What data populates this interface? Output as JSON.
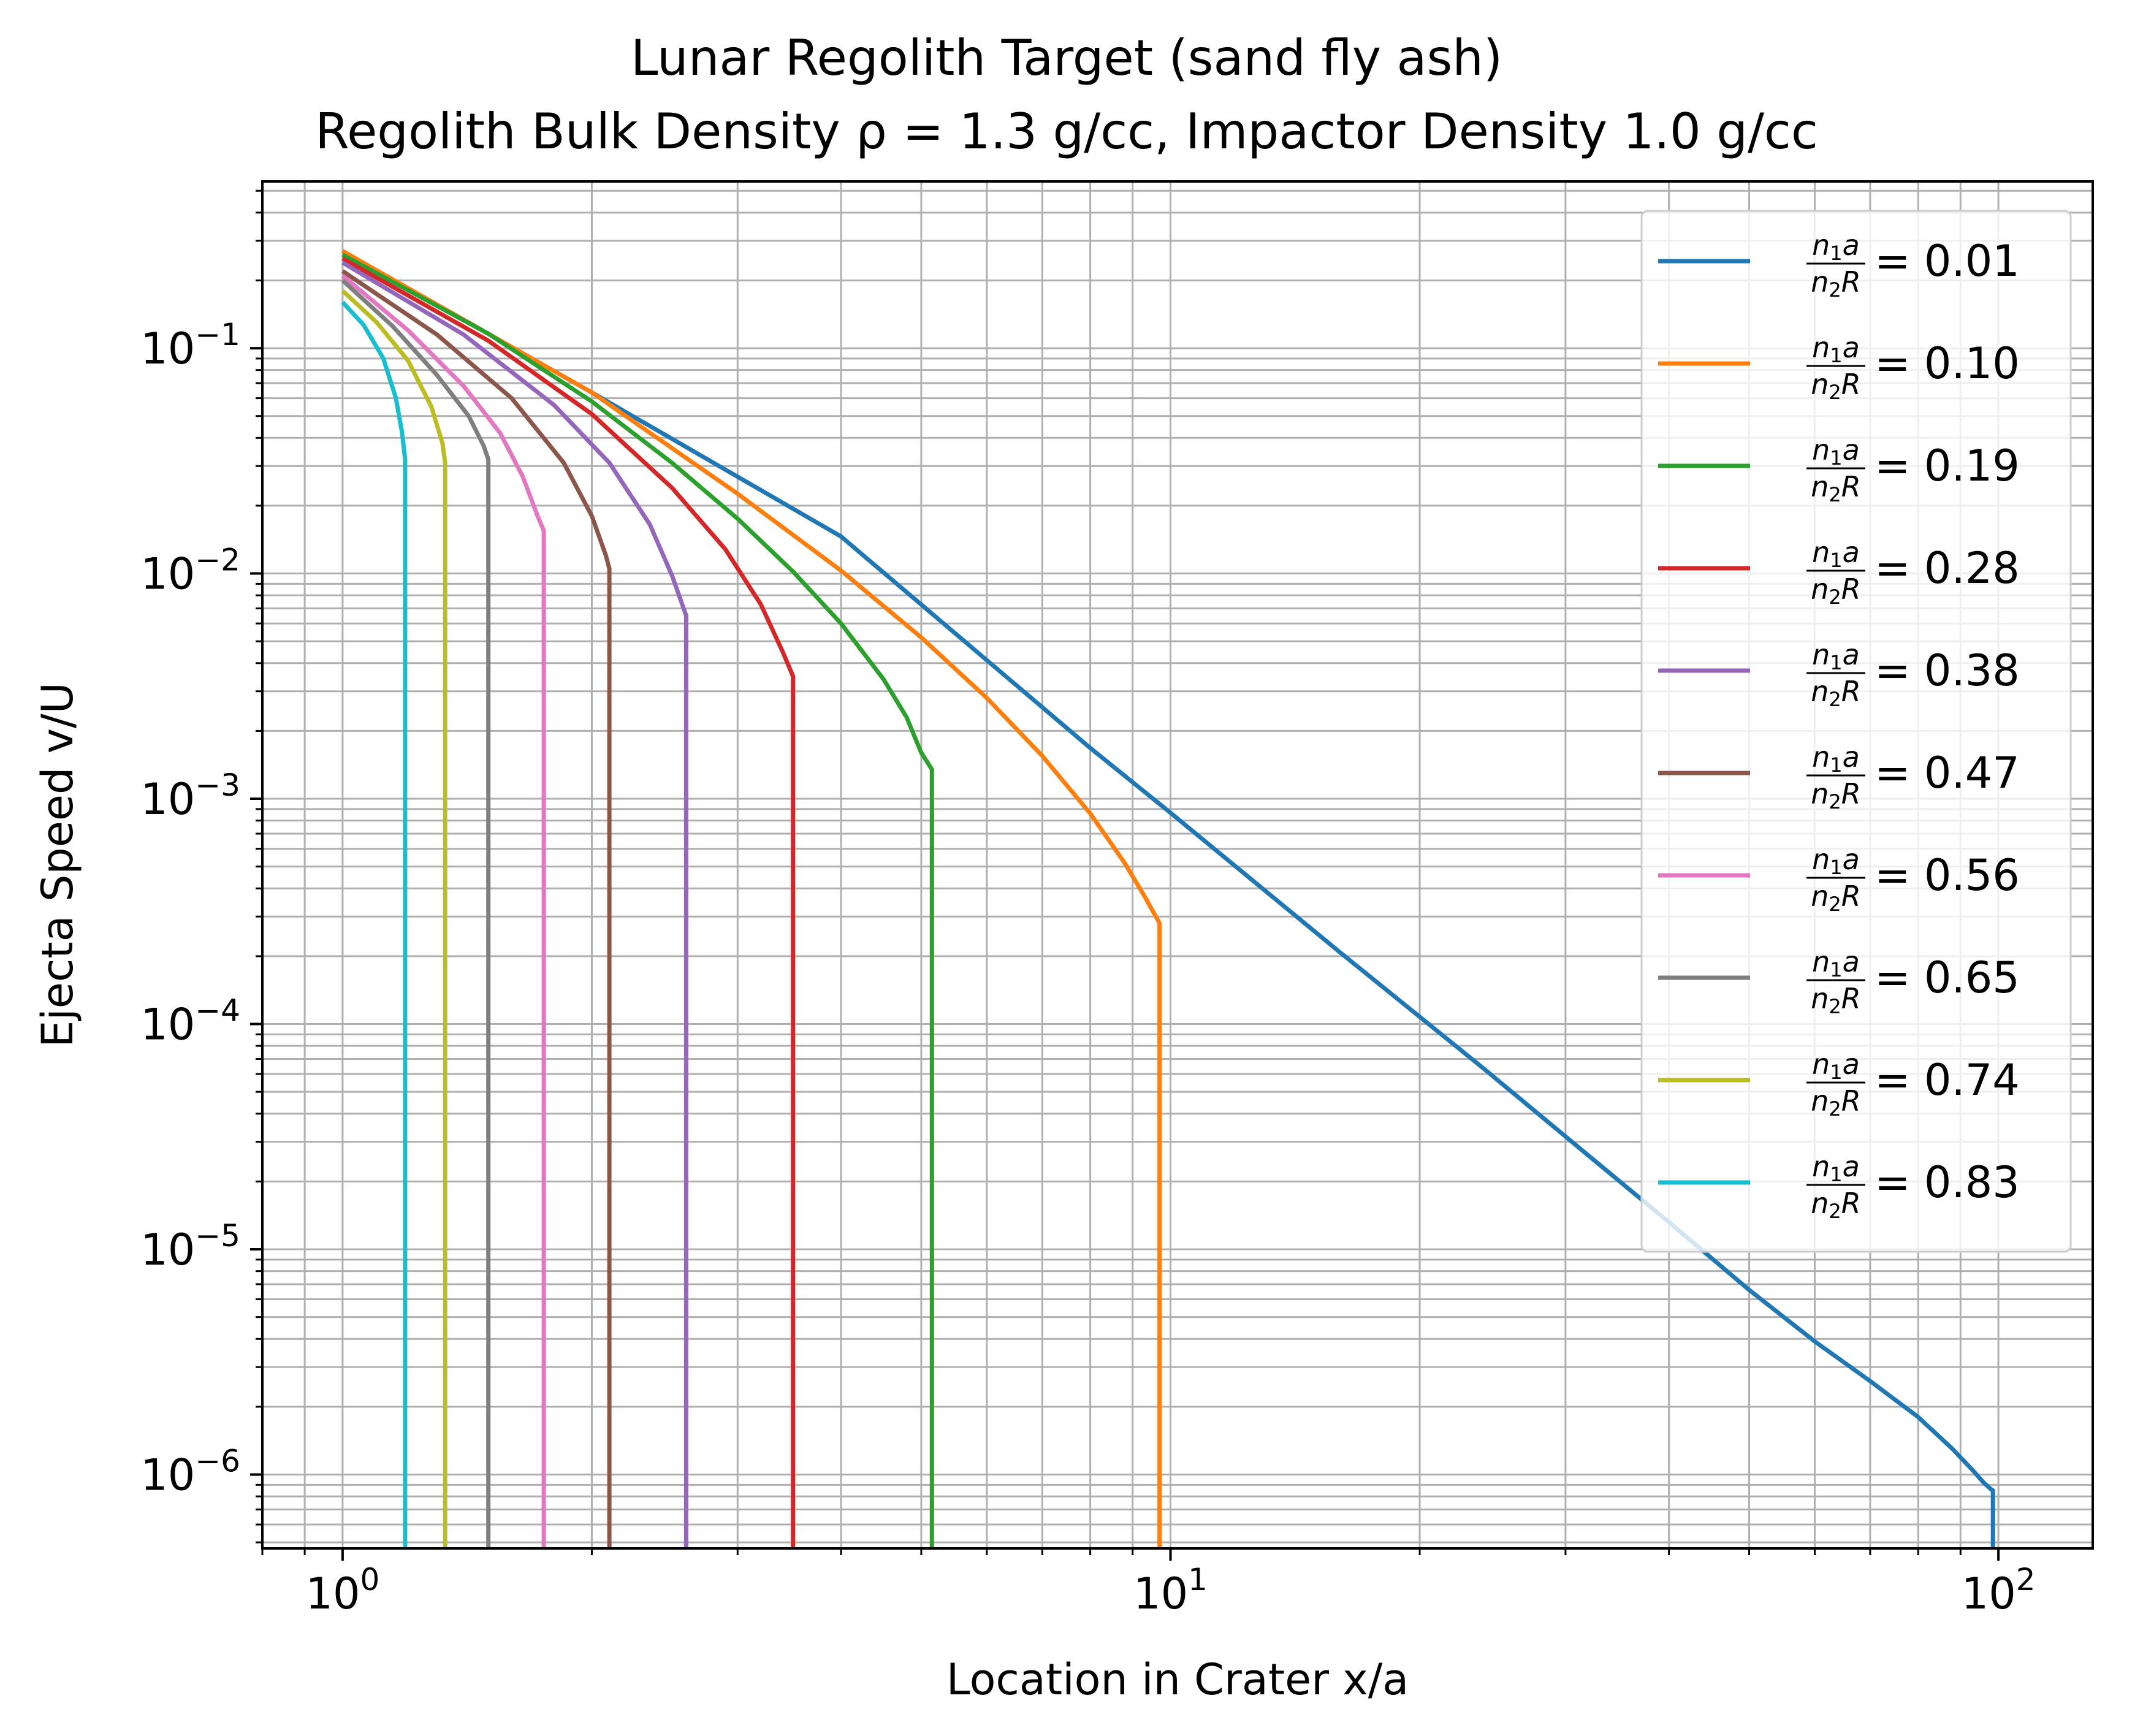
{
  "chart_data": {
    "type": "line",
    "title": "Lunar Regolith Target (sand fly ash)",
    "subtitle": "Regolith Bulk Density ρ = 1.3 g/cc, Impactor Density 1.0 g/cc",
    "xlabel": "Location in Crater x/a",
    "ylabel": "Ejecta Speed v/U",
    "xscale": "log",
    "yscale": "log",
    "xlim": [
      0.8,
      130
    ],
    "ylim": [
      4.7e-07,
      0.55
    ],
    "grid": true,
    "legend_position": "upper right",
    "x_ticks": [
      {
        "value": 1,
        "base": "10",
        "exp": "0"
      },
      {
        "value": 10,
        "base": "10",
        "exp": "1"
      },
      {
        "value": 100,
        "base": "10",
        "exp": "2"
      }
    ],
    "y_ticks": [
      {
        "value": 1e-06,
        "base": "10",
        "exp": "−6"
      },
      {
        "value": 1e-05,
        "base": "10",
        "exp": "−5"
      },
      {
        "value": 0.0001,
        "base": "10",
        "exp": "−4"
      },
      {
        "value": 0.001,
        "base": "10",
        "exp": "−3"
      },
      {
        "value": 0.01,
        "base": "10",
        "exp": "−2"
      },
      {
        "value": 0.1,
        "base": "10",
        "exp": "−1"
      }
    ],
    "legend_fraction": {
      "num": "n",
      "num_sub": "1",
      "num_var": "a",
      "den": "n",
      "den_sub": "2",
      "den_var": "R"
    },
    "series": [
      {
        "name": "= 0.01",
        "color": "#1f77b4",
        "x": [
          1,
          2,
          4,
          8,
          10,
          16,
          24,
          32,
          40,
          50,
          60,
          70,
          80,
          88,
          93,
          96,
          98,
          98.5,
          98.5
        ],
        "y": [
          0.27,
          0.0636,
          0.0146,
          0.00168,
          0.000866,
          0.000209,
          6.26e-05,
          2.6e-05,
          1.32e-05,
          6.6e-06,
          3.9e-06,
          2.6e-06,
          1.8e-06,
          1.3e-06,
          1.05e-06,
          9.2e-07,
          8.6e-07,
          8.5e-07,
          4.7e-07
        ]
      },
      {
        "name": "= 0.10",
        "color": "#ff7f0e",
        "x": [
          1,
          2,
          3,
          4,
          5,
          6,
          7,
          8,
          8.8,
          9.3,
          9.6,
          9.7,
          9.7
        ],
        "y": [
          0.27,
          0.0636,
          0.0226,
          0.0103,
          0.0052,
          0.0028,
          0.00155,
          0.00086,
          0.00052,
          0.00037,
          0.0003,
          0.00028,
          4.7e-07
        ]
      },
      {
        "name": "= 0.19",
        "color": "#2ca02c",
        "x": [
          1,
          1.5,
          2,
          2.5,
          3,
          3.5,
          4,
          4.5,
          4.8,
          5.0,
          5.15,
          5.15
        ],
        "y": [
          0.26,
          0.116,
          0.058,
          0.031,
          0.0175,
          0.0102,
          0.006,
          0.0034,
          0.0023,
          0.0016,
          0.00135,
          4.7e-07
        ]
      },
      {
        "name": "= 0.28",
        "color": "#d62728",
        "x": [
          1,
          1.5,
          2,
          2.5,
          2.9,
          3.2,
          3.4,
          3.5,
          3.5
        ],
        "y": [
          0.25,
          0.108,
          0.051,
          0.024,
          0.0128,
          0.0073,
          0.0045,
          0.0035,
          4.7e-07
        ]
      },
      {
        "name": "= 0.38",
        "color": "#9467bd",
        "x": [
          1,
          1.4,
          1.8,
          2.1,
          2.35,
          2.5,
          2.6,
          2.6
        ],
        "y": [
          0.24,
          0.115,
          0.056,
          0.031,
          0.0165,
          0.0098,
          0.0065,
          4.7e-07
        ]
      },
      {
        "name": "= 0.47",
        "color": "#8c564b",
        "x": [
          1,
          1.3,
          1.6,
          1.85,
          2.0,
          2.08,
          2.1,
          2.1
        ],
        "y": [
          0.22,
          0.115,
          0.06,
          0.031,
          0.018,
          0.012,
          0.0105,
          4.7e-07
        ]
      },
      {
        "name": "= 0.56",
        "color": "#e377c2",
        "x": [
          1,
          1.2,
          1.4,
          1.55,
          1.65,
          1.72,
          1.75,
          1.75
        ],
        "y": [
          0.21,
          0.12,
          0.068,
          0.042,
          0.027,
          0.018,
          0.0155,
          4.7e-07
        ]
      },
      {
        "name": "= 0.65",
        "color": "#7f7f7f",
        "x": [
          1,
          1.15,
          1.3,
          1.42,
          1.48,
          1.5,
          1.5,
          1.5
        ],
        "y": [
          0.2,
          0.125,
          0.076,
          0.05,
          0.037,
          0.032,
          0.03,
          4.7e-07
        ]
      },
      {
        "name": "= 0.74",
        "color": "#bcbd22",
        "x": [
          1,
          1.1,
          1.2,
          1.28,
          1.32,
          1.33,
          1.33
        ],
        "y": [
          0.18,
          0.13,
          0.088,
          0.055,
          0.038,
          0.031,
          4.7e-07
        ]
      },
      {
        "name": "= 0.83",
        "color": "#17becf",
        "x": [
          1,
          1.06,
          1.12,
          1.16,
          1.18,
          1.19,
          1.19
        ],
        "y": [
          0.16,
          0.127,
          0.09,
          0.06,
          0.042,
          0.032,
          4.7e-07
        ]
      }
    ]
  }
}
